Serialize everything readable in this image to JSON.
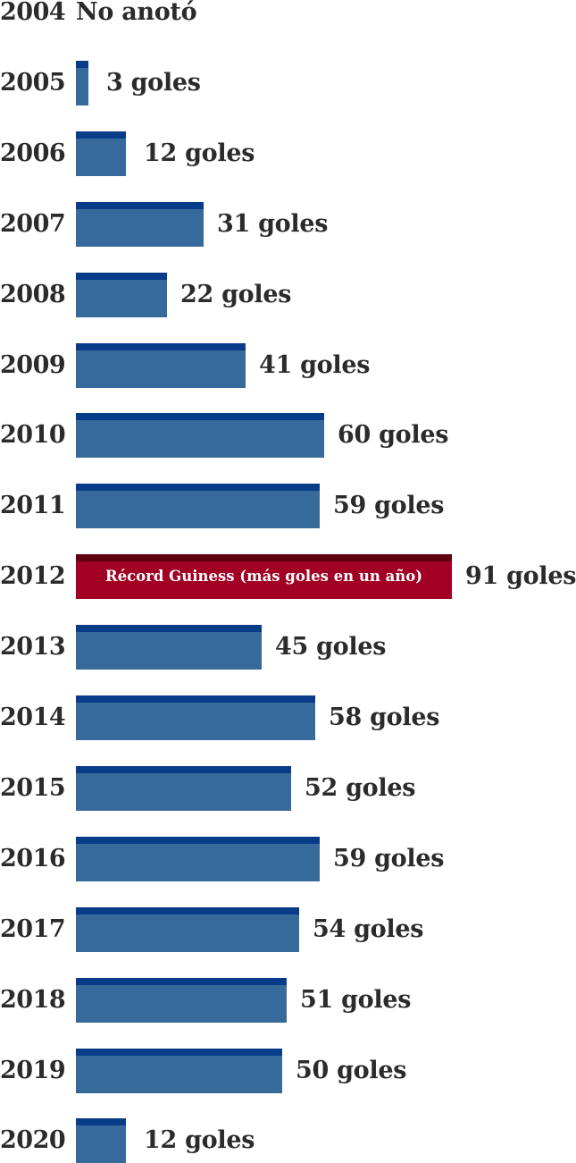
{
  "chart_data": {
    "type": "bar",
    "orientation": "horizontal",
    "categories": [
      "2004",
      "2005",
      "2006",
      "2007",
      "2008",
      "2009",
      "2010",
      "2011",
      "2012",
      "2013",
      "2014",
      "2015",
      "2016",
      "2017",
      "2018",
      "2019",
      "2020"
    ],
    "values": [
      0,
      3,
      12,
      31,
      22,
      41,
      60,
      59,
      91,
      45,
      58,
      52,
      59,
      54,
      51,
      50,
      12
    ],
    "value_labels": [
      "No anotó",
      "3 goles",
      "12 goles",
      "31 goles",
      "22 goles",
      "41 goles",
      "60 goles",
      "59 goles",
      "91 goles",
      "45 goles",
      "58 goles",
      "52 goles",
      "59 goles",
      "54 goles",
      "51 goles",
      "50 goles",
      "12 goles"
    ],
    "annotations": [
      {
        "category": "2012",
        "text": "Récord Guiness (más goles en un año)"
      }
    ],
    "highlight_category": "2012",
    "xlim": [
      0,
      91
    ],
    "grid": false,
    "colors": {
      "bar": "#366a9a",
      "bar_cap": "#093c88",
      "highlight": "#a10024",
      "highlight_cap": "#5f0012",
      "text": "#2b2b2b",
      "note_text": "#ffffff"
    }
  }
}
